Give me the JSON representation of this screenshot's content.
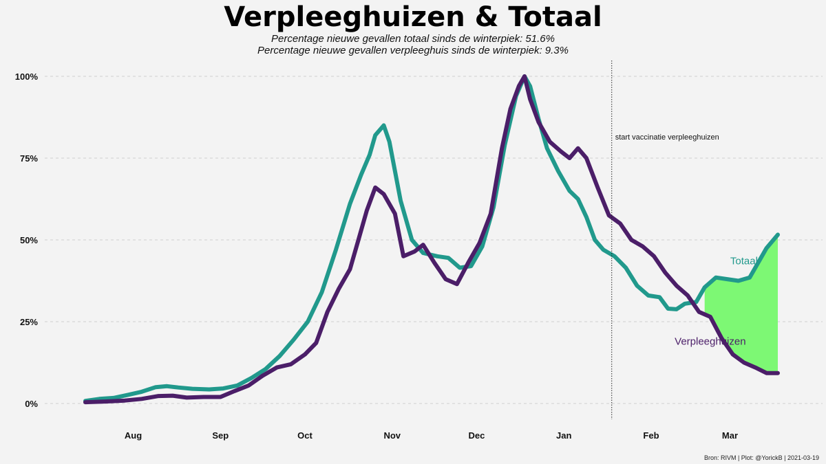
{
  "title": "Verpleeghuizen & Totaal",
  "subtitle_lines": [
    "Percentage nieuwe gevallen totaal sinds de winterpiek: 51.6%",
    "Percentage nieuwe gevallen verpleeghuis sinds de winterpiek: 9.3%"
  ],
  "caption": "Bron: RIVM | Plot: @YorickB  |  2021-03-19",
  "colors": {
    "totaal": "#21998c",
    "verpleeghuizen": "#4b1e68",
    "fill": "#7df874",
    "grid": "#cfcfcf",
    "background": "#f3f3f3"
  },
  "chart_data": {
    "type": "line",
    "title": "Verpleeghuizen & Totaal",
    "xlabel": "",
    "ylabel": "",
    "x_range": [
      "2020-07-15",
      "2021-03-18"
    ],
    "ylim": [
      0,
      100
    ],
    "y_ticks": [
      0,
      25,
      50,
      75,
      100
    ],
    "y_tick_labels": [
      "0%",
      "25%",
      "50%",
      "75%",
      "100%"
    ],
    "x_ticks": [
      {
        "date": "2020-08-01",
        "label": "Aug"
      },
      {
        "date": "2020-09-01",
        "label": "Sep"
      },
      {
        "date": "2020-10-01",
        "label": "Oct"
      },
      {
        "date": "2020-11-01",
        "label": "Nov"
      },
      {
        "date": "2020-12-01",
        "label": "Dec"
      },
      {
        "date": "2021-01-01",
        "label": "Jan"
      },
      {
        "date": "2021-02-01",
        "label": "Feb"
      },
      {
        "date": "2021-03-01",
        "label": "Mar"
      }
    ],
    "grid": "horizontal dashed",
    "legend": "direct labels",
    "annotation": {
      "date": "2021-01-18",
      "text": "start vaccinatie verpleeghuizen"
    },
    "fill_between": {
      "from": "2021-02-20",
      "to": "2021-03-18"
    },
    "series": [
      {
        "name": "Totaal",
        "label_date": "2021-03-06",
        "label_value": 42.5,
        "points": [
          [
            "2020-07-15",
            0.8
          ],
          [
            "2020-07-20",
            1.4
          ],
          [
            "2020-07-25",
            1.7
          ],
          [
            "2020-07-30",
            2.6
          ],
          [
            "2020-08-04",
            3.6
          ],
          [
            "2020-08-09",
            5.0
          ],
          [
            "2020-08-13",
            5.3
          ],
          [
            "2020-08-17",
            4.9
          ],
          [
            "2020-08-22",
            4.5
          ],
          [
            "2020-08-28",
            4.3
          ],
          [
            "2020-09-02",
            4.6
          ],
          [
            "2020-09-07",
            5.5
          ],
          [
            "2020-09-12",
            7.8
          ],
          [
            "2020-09-17",
            10.5
          ],
          [
            "2020-09-22",
            14.5
          ],
          [
            "2020-09-27",
            19.5
          ],
          [
            "2020-10-02",
            25.0
          ],
          [
            "2020-10-07",
            34.0
          ],
          [
            "2020-10-12",
            47.0
          ],
          [
            "2020-10-17",
            61.0
          ],
          [
            "2020-10-21",
            70.0
          ],
          [
            "2020-10-24",
            76.0
          ],
          [
            "2020-10-26",
            82.0
          ],
          [
            "2020-10-29",
            85.0
          ],
          [
            "2020-10-31",
            80.0
          ],
          [
            "2020-11-04",
            62.0
          ],
          [
            "2020-11-08",
            50.0
          ],
          [
            "2020-11-12",
            46.0
          ],
          [
            "2020-11-17",
            45.0
          ],
          [
            "2020-11-21",
            44.5
          ],
          [
            "2020-11-25",
            41.5
          ],
          [
            "2020-11-29",
            42.0
          ],
          [
            "2020-12-03",
            48.0
          ],
          [
            "2020-12-07",
            60.0
          ],
          [
            "2020-12-11",
            79.0
          ],
          [
            "2020-12-15",
            94.0
          ],
          [
            "2020-12-18",
            100.0
          ],
          [
            "2020-12-20",
            97.0
          ],
          [
            "2020-12-23",
            87.0
          ],
          [
            "2020-12-26",
            78.0
          ],
          [
            "2020-12-30",
            71.0
          ],
          [
            "2021-01-03",
            65.0
          ],
          [
            "2021-01-06",
            62.5
          ],
          [
            "2021-01-09",
            57.0
          ],
          [
            "2021-01-12",
            50.0
          ],
          [
            "2021-01-15",
            47.0
          ],
          [
            "2021-01-19",
            45.0
          ],
          [
            "2021-01-23",
            41.5
          ],
          [
            "2021-01-27",
            36.0
          ],
          [
            "2021-01-31",
            33.0
          ],
          [
            "2021-02-04",
            32.5
          ],
          [
            "2021-02-07",
            29.0
          ],
          [
            "2021-02-10",
            28.8
          ],
          [
            "2021-02-13",
            30.5
          ],
          [
            "2021-02-17",
            31.0
          ],
          [
            "2021-02-20",
            35.5
          ],
          [
            "2021-02-24",
            38.5
          ],
          [
            "2021-02-28",
            38.0
          ],
          [
            "2021-03-04",
            37.5
          ],
          [
            "2021-03-08",
            38.5
          ],
          [
            "2021-03-11",
            43.0
          ],
          [
            "2021-03-14",
            47.5
          ],
          [
            "2021-03-18",
            51.6
          ]
        ]
      },
      {
        "name": "Verpleeghuizen",
        "label_date": "2021-02-22",
        "label_value": 18.0,
        "points": [
          [
            "2020-07-15",
            0.4
          ],
          [
            "2020-07-22",
            0.6
          ],
          [
            "2020-07-29",
            0.9
          ],
          [
            "2020-08-04",
            1.4
          ],
          [
            "2020-08-10",
            2.3
          ],
          [
            "2020-08-15",
            2.4
          ],
          [
            "2020-08-20",
            1.8
          ],
          [
            "2020-08-26",
            2.0
          ],
          [
            "2020-09-01",
            2.0
          ],
          [
            "2020-09-06",
            3.8
          ],
          [
            "2020-09-11",
            5.5
          ],
          [
            "2020-09-16",
            8.5
          ],
          [
            "2020-09-21",
            11.0
          ],
          [
            "2020-09-26",
            12.0
          ],
          [
            "2020-10-01",
            15.0
          ],
          [
            "2020-10-05",
            18.5
          ],
          [
            "2020-10-09",
            28.0
          ],
          [
            "2020-10-13",
            35.0
          ],
          [
            "2020-10-17",
            41.0
          ],
          [
            "2020-10-20",
            50.0
          ],
          [
            "2020-10-23",
            59.0
          ],
          [
            "2020-10-26",
            66.0
          ],
          [
            "2020-10-29",
            64.0
          ],
          [
            "2020-11-02",
            58.0
          ],
          [
            "2020-11-05",
            45.0
          ],
          [
            "2020-11-09",
            46.5
          ],
          [
            "2020-11-12",
            48.5
          ],
          [
            "2020-11-16",
            43.0
          ],
          [
            "2020-11-20",
            38.0
          ],
          [
            "2020-11-24",
            36.5
          ],
          [
            "2020-11-28",
            43.0
          ],
          [
            "2020-12-02",
            49.0
          ],
          [
            "2020-12-06",
            58.0
          ],
          [
            "2020-12-10",
            78.0
          ],
          [
            "2020-12-13",
            90.0
          ],
          [
            "2020-12-16",
            97.0
          ],
          [
            "2020-12-18",
            100.0
          ],
          [
            "2020-12-20",
            93.0
          ],
          [
            "2020-12-23",
            86.0
          ],
          [
            "2020-12-27",
            80.0
          ],
          [
            "2020-12-31",
            77.0
          ],
          [
            "2021-01-03",
            75.0
          ],
          [
            "2021-01-06",
            78.0
          ],
          [
            "2021-01-09",
            75.0
          ],
          [
            "2021-01-13",
            66.0
          ],
          [
            "2021-01-17",
            57.5
          ],
          [
            "2021-01-21",
            55.0
          ],
          [
            "2021-01-25",
            50.0
          ],
          [
            "2021-01-29",
            48.0
          ],
          [
            "2021-02-02",
            45.0
          ],
          [
            "2021-02-06",
            40.0
          ],
          [
            "2021-02-10",
            36.0
          ],
          [
            "2021-02-14",
            33.0
          ],
          [
            "2021-02-18",
            28.0
          ],
          [
            "2021-02-22",
            26.5
          ],
          [
            "2021-02-26",
            20.0
          ],
          [
            "2021-03-02",
            15.0
          ],
          [
            "2021-03-06",
            12.5
          ],
          [
            "2021-03-10",
            11.0
          ],
          [
            "2021-03-14",
            9.3
          ],
          [
            "2021-03-18",
            9.3
          ]
        ]
      }
    ]
  }
}
